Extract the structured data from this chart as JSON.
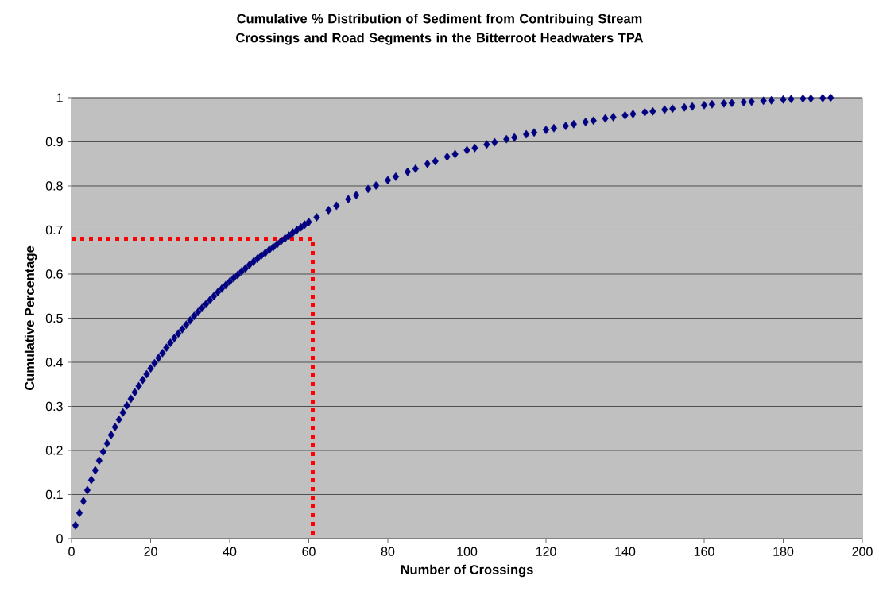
{
  "chart_data": {
    "type": "scatter",
    "title": "Cumulative % Distribution of Sediment from Contribuing Stream Crossings and Road Segments in the Bitterroot Headwaters TPA",
    "xlabel": "Number of Crossings",
    "ylabel": "Cumulative Percentage",
    "xlim": [
      0,
      200
    ],
    "xticks": [
      0,
      20,
      40,
      60,
      80,
      100,
      120,
      140,
      160,
      180,
      200
    ],
    "ylim": [
      0,
      1
    ],
    "yticks": [
      0,
      0.1,
      0.2,
      0.3,
      0.4,
      0.5,
      0.6,
      0.7,
      0.8,
      0.9,
      1
    ],
    "grid": "y",
    "marker": "diamond",
    "series": [
      {
        "color": "#000080",
        "x": [
          1,
          2,
          3,
          4,
          5,
          6,
          7,
          8,
          9,
          10,
          11,
          12,
          13,
          14,
          15,
          16,
          17,
          18,
          19,
          20,
          21,
          22,
          23,
          24,
          25,
          26,
          27,
          28,
          29,
          30,
          31,
          32,
          33,
          34,
          35,
          36,
          37,
          38,
          39,
          40,
          41,
          42,
          43,
          44,
          45,
          46,
          47,
          48,
          49,
          50,
          51,
          52,
          53,
          54,
          55,
          56,
          57,
          58,
          59,
          60,
          62,
          65,
          67,
          70,
          72,
          75,
          77,
          80,
          82,
          85,
          87,
          90,
          92,
          95,
          97,
          100,
          102,
          105,
          107,
          110,
          112,
          115,
          117,
          120,
          122,
          125,
          127,
          130,
          132,
          135,
          137,
          140,
          142,
          145,
          147,
          150,
          152,
          155,
          157,
          160,
          162,
          165,
          167,
          170,
          172,
          175,
          177,
          180,
          182,
          185,
          187,
          190,
          192
        ],
        "values": [
          0.03,
          0.058,
          0.085,
          0.11,
          0.133,
          0.155,
          0.177,
          0.197,
          0.216,
          0.235,
          0.253,
          0.27,
          0.286,
          0.302,
          0.317,
          0.332,
          0.346,
          0.36,
          0.373,
          0.386,
          0.398,
          0.41,
          0.421,
          0.433,
          0.444,
          0.455,
          0.465,
          0.475,
          0.485,
          0.495,
          0.505,
          0.514,
          0.523,
          0.532,
          0.541,
          0.55,
          0.559,
          0.567,
          0.575,
          0.583,
          0.591,
          0.598,
          0.606,
          0.613,
          0.621,
          0.628,
          0.635,
          0.642,
          0.648,
          0.655,
          0.661,
          0.668,
          0.675,
          0.681,
          0.687,
          0.694,
          0.7,
          0.706,
          0.712,
          0.718,
          0.729,
          0.745,
          0.755,
          0.77,
          0.779,
          0.793,
          0.801,
          0.813,
          0.821,
          0.832,
          0.839,
          0.85,
          0.856,
          0.866,
          0.872,
          0.881,
          0.886,
          0.894,
          0.899,
          0.906,
          0.91,
          0.917,
          0.921,
          0.927,
          0.931,
          0.936,
          0.94,
          0.945,
          0.948,
          0.953,
          0.956,
          0.96,
          0.963,
          0.967,
          0.969,
          0.973,
          0.975,
          0.978,
          0.98,
          0.983,
          0.985,
          0.987,
          0.988,
          0.99,
          0.991,
          0.993,
          0.994,
          0.996,
          0.997,
          0.998,
          0.998,
          0.999,
          1.0
        ]
      },
      {
        "type": "line",
        "color": "#ff0000",
        "line_style": "dotted",
        "marker": "none",
        "x": [
          0,
          61,
          61
        ],
        "values": [
          0.68,
          0.68,
          0
        ]
      }
    ]
  }
}
